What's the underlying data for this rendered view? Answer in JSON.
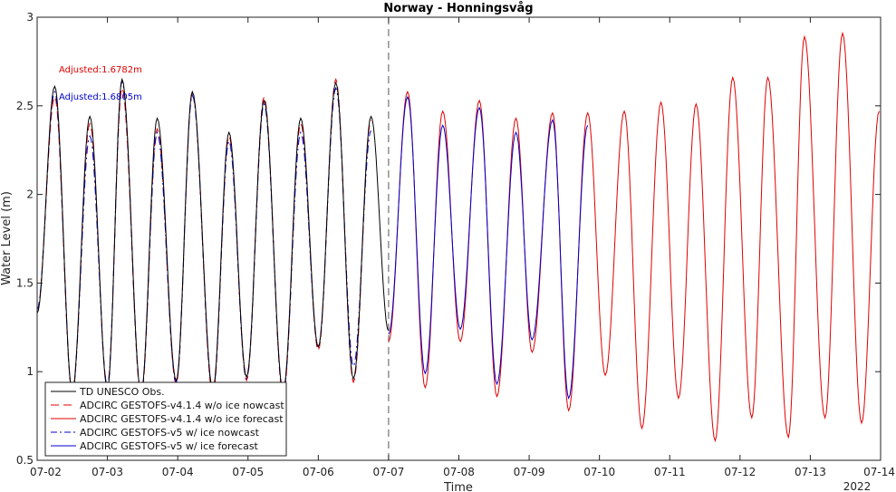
{
  "chart_data": {
    "type": "line",
    "title": "Norway - Honningsvåg",
    "xlabel": "Time",
    "ylabel": "Water Level (m)",
    "year_label": "2022",
    "xlim": [
      "07-02",
      "07-14"
    ],
    "ylim": [
      0.5,
      3
    ],
    "x_ticks": [
      "07-02",
      "07-03",
      "07-04",
      "07-05",
      "07-06",
      "07-07",
      "07-08",
      "07-09",
      "07-10",
      "07-11",
      "07-12",
      "07-13",
      "07-14"
    ],
    "y_ticks": [
      "0.5",
      "1",
      "1.5",
      "2",
      "2.5",
      "3"
    ],
    "grid": false,
    "forecast_start": "07-07",
    "legend_position": "bottom-left",
    "annotations": [
      {
        "text": "Adjusted:1.6782m",
        "color": "#e00000"
      },
      {
        "text": "Adjusted:1.6805m",
        "color": "#0000cc"
      }
    ],
    "tide": {
      "obs_start_hw": "07-02 06:00",
      "obs_end": "07-07",
      "nowcast_v5_end": "07-07",
      "forecast_v5_end": "07-10 04:30",
      "forecast_v4_end": "07-14",
      "period_hours": 12.42,
      "high_waters": [
        {
          "t": "07-02 06:00",
          "obs": 2.61,
          "v4_now": 2.55,
          "v5_now": 2.58
        },
        {
          "t": "07-02 18:00",
          "obs": 2.44,
          "v4_now": 2.4,
          "v5_now": 2.33
        },
        {
          "t": "07-03 05:00",
          "obs": 2.65,
          "v4_now": 2.6,
          "v5_now": 2.64
        },
        {
          "t": "07-03 17:00",
          "obs": 2.43,
          "v4_now": 2.37,
          "v5_now": 2.35
        },
        {
          "t": "07-04 05:00",
          "obs": 2.58,
          "v4_now": 2.57,
          "v5_now": 2.56
        },
        {
          "t": "07-04 17:30",
          "obs": 2.35,
          "v4_now": 2.33,
          "v5_now": 2.3
        },
        {
          "t": "07-05 05:30",
          "obs": 2.53,
          "v4_now": 2.55,
          "v5_now": 2.51
        },
        {
          "t": "07-05 18:00",
          "obs": 2.43,
          "v4_now": 2.4,
          "v5_now": 2.35
        },
        {
          "t": "07-06 06:00",
          "obs": 2.63,
          "v4_now": 2.65,
          "v5_now": 2.6
        },
        {
          "t": "07-06 18:00",
          "obs": 2.44,
          "v4_now": 2.42,
          "v5_now": 2.36
        },
        {
          "t": "07-07 06:30",
          "v4_fc": 2.58,
          "v5_fc": 2.55
        },
        {
          "t": "07-07 18:30",
          "v4_fc": 2.47,
          "v5_fc": 2.39
        },
        {
          "t": "07-08 07:00",
          "v4_fc": 2.53,
          "v5_fc": 2.49
        },
        {
          "t": "07-08 19:30",
          "v4_fc": 2.43,
          "v5_fc": 2.35
        },
        {
          "t": "07-09 08:00",
          "v4_fc": 2.46,
          "v5_fc": 2.42
        },
        {
          "t": "07-09 20:00",
          "v4_fc": 2.46,
          "v5_fc": 2.39
        },
        {
          "t": "07-10 08:30",
          "v4_fc": 2.47
        },
        {
          "t": "07-10 21:00",
          "v4_fc": 2.52
        },
        {
          "t": "07-11 09:00",
          "v4_fc": 2.51
        },
        {
          "t": "07-11 21:30",
          "v4_fc": 2.66
        },
        {
          "t": "07-12 09:30",
          "v4_fc": 2.66
        },
        {
          "t": "07-12 22:00",
          "v4_fc": 2.89
        },
        {
          "t": "07-13 11:00",
          "v4_fc": 2.91
        },
        {
          "t": "07-13 23:30",
          "v4_fc": 2.47
        }
      ],
      "low_waters": [
        {
          "t": "07-02 00:00",
          "obs": 1.33,
          "v4_now": 1.35,
          "v5_now": 1.35
        },
        {
          "t": "07-02 12:00",
          "obs": 0.89,
          "v4_now": 0.88,
          "v5_now": 0.89
        },
        {
          "t": "07-03 00:00",
          "obs": 0.9,
          "v4_now": 0.92,
          "v5_now": 0.92
        },
        {
          "t": "07-03 11:30",
          "obs": 0.88,
          "v4_now": 0.86,
          "v5_now": 0.88
        },
        {
          "t": "07-03 23:30",
          "obs": 0.95,
          "v4_now": 0.93,
          "v5_now": 0.94
        },
        {
          "t": "07-04 12:00",
          "obs": 0.9,
          "v4_now": 0.87,
          "v5_now": 0.89
        },
        {
          "t": "07-04 23:30",
          "obs": 0.97,
          "v4_now": 0.95,
          "v5_now": 0.96
        },
        {
          "t": "07-05 12:00",
          "obs": 0.89,
          "v4_now": 0.86,
          "v5_now": 0.88
        },
        {
          "t": "07-06 00:00",
          "obs": 1.14,
          "v4_now": 1.12,
          "v5_now": 1.14
        },
        {
          "t": "07-06 12:00",
          "obs": 0.96,
          "v4_now": 0.94,
          "v5_now": 1.03
        },
        {
          "t": "07-07 00:00",
          "obs": 1.23,
          "v4_fc": 1.17,
          "v5_fc": 1.21
        },
        {
          "t": "07-07 12:30",
          "v4_fc": 0.91,
          "v5_fc": 0.99
        },
        {
          "t": "07-08 00:30",
          "v4_fc": 1.17,
          "v5_fc": 1.24
        },
        {
          "t": "07-08 13:00",
          "v4_fc": 0.86,
          "v5_fc": 0.93
        },
        {
          "t": "07-09 01:00",
          "v4_fc": 1.11,
          "v5_fc": 1.18
        },
        {
          "t": "07-09 13:30",
          "v4_fc": 0.78,
          "v5_fc": 0.85
        },
        {
          "t": "07-10 02:00",
          "v4_fc": 0.98
        },
        {
          "t": "07-10 14:30",
          "v4_fc": 0.68
        },
        {
          "t": "07-11 03:00",
          "v4_fc": 0.85
        },
        {
          "t": "07-11 15:30",
          "v4_fc": 0.61
        },
        {
          "t": "07-12 04:00",
          "v4_fc": 0.74
        },
        {
          "t": "07-12 16:30",
          "v4_fc": 0.63
        },
        {
          "t": "07-13 05:00",
          "v4_fc": 0.74
        },
        {
          "t": "07-13 17:30",
          "v4_fc": 0.71
        }
      ]
    },
    "series": [
      {
        "name": "TD UNESCO Obs.",
        "color": "#000000",
        "dash": "solid",
        "key": "obs"
      },
      {
        "name": "ADCIRC GESTOFS-v4.1.4 w/o ice nowcast",
        "color": "#e00000",
        "dash": "dashed",
        "key": "v4_now"
      },
      {
        "name": "ADCIRC GESTOFS-v4.1.4 w/o ice forecast",
        "color": "#e00000",
        "dash": "solid",
        "key": "v4_fc"
      },
      {
        "name": "ADCIRC GESTOFS-v5 w/ ice nowcast",
        "color": "#0000cc",
        "dash": "dashdot",
        "key": "v5_now"
      },
      {
        "name": "ADCIRC GESTOFS-v5 w/ ice forecast",
        "color": "#0000cc",
        "dash": "solid",
        "key": "v5_fc"
      }
    ]
  }
}
